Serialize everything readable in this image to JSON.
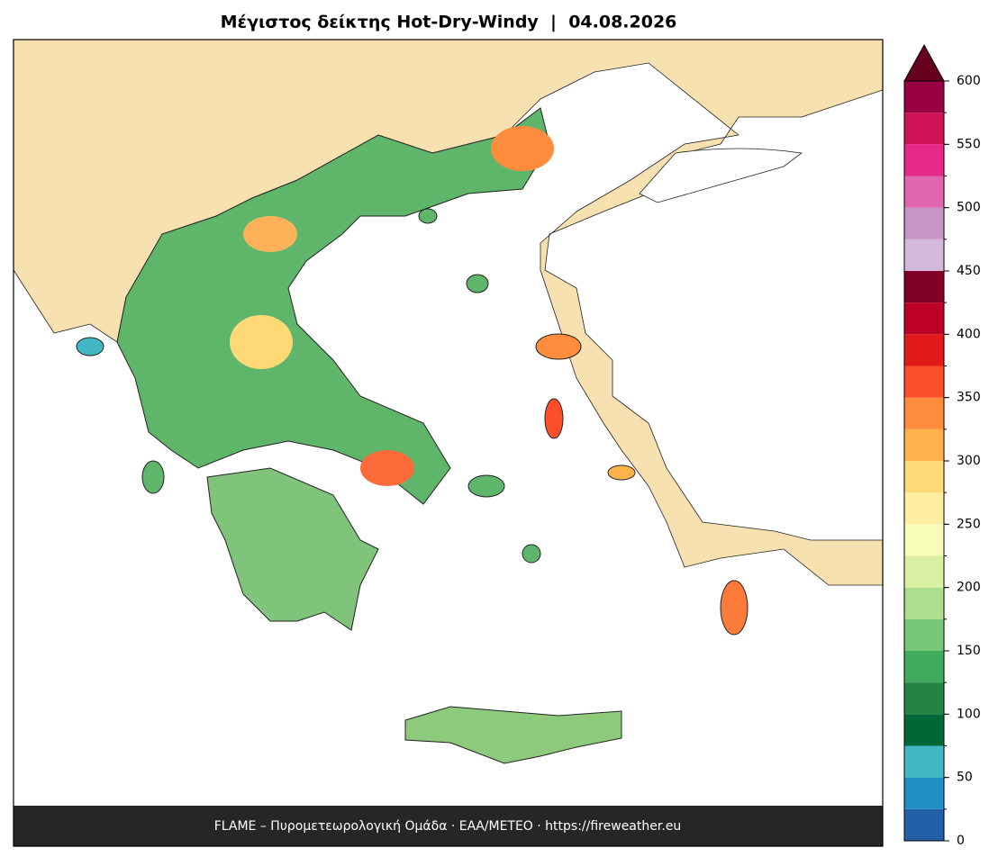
{
  "title": "Μέγιστος δείκτης Hot-Dry-Windy  |  04.08.2026",
  "footer": "FLAME – Πυρομετεωρολογική Ομάδα · ΕΑΑ/METEO · https://fireweather.eu",
  "colorbar": {
    "lim": [
      0,
      600
    ],
    "ticks": [
      0,
      50,
      100,
      150,
      200,
      250,
      300,
      350,
      400,
      450,
      500,
      550,
      600
    ],
    "bounds": [
      0,
      25,
      50,
      75,
      100,
      125,
      150,
      175,
      200,
      225,
      250,
      275,
      300,
      325,
      350,
      375,
      400,
      425,
      450,
      475,
      500,
      525,
      550,
      575,
      600
    ],
    "colors": [
      "#2460a7",
      "#1f8fc4",
      "#41b6c4",
      "#006837",
      "#238443",
      "#41ab5d",
      "#78c679",
      "#addd8e",
      "#d9f0a3",
      "#f7fcb9",
      "#ffeda0",
      "#fed976",
      "#feb24c",
      "#fd8d3c",
      "#fc4e2a",
      "#e31a1c",
      "#bd0026",
      "#800026",
      "#d4b9da",
      "#c994c7",
      "#df65b0",
      "#e7298a",
      "#ce1256",
      "#980043"
    ],
    "extend_color": "#67001f"
  }
}
